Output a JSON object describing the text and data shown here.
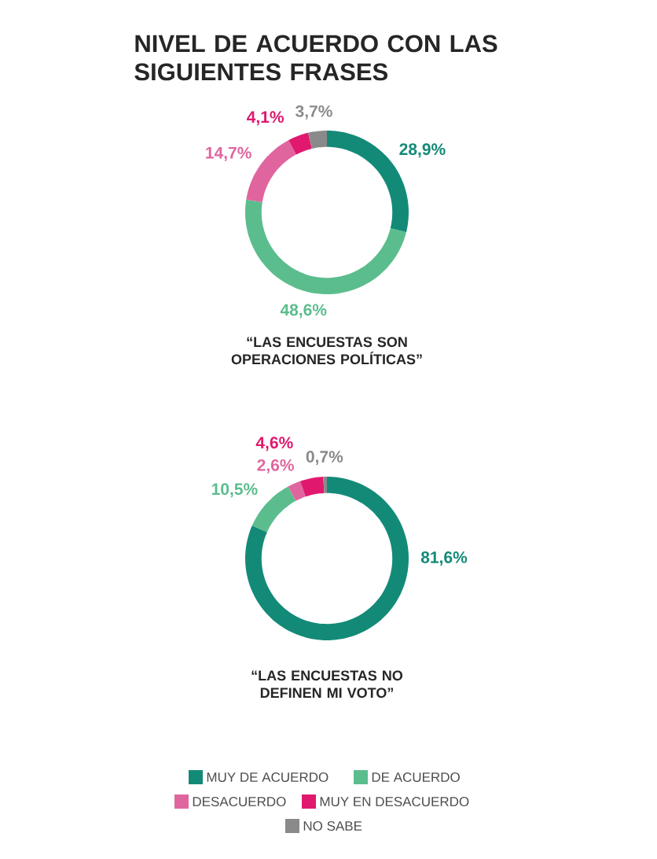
{
  "chart_data": [
    {
      "type": "donut",
      "title": "NIVEL DE ACUERDO CON LAS SIGUIENTES FRASES",
      "xlabel": "“LAS ENCUESTAS SON OPERACIONES POLÍTICAS”",
      "categories": [
        null,
        null,
        null,
        null,
        null
      ],
      "values": [
        28.9,
        48.6,
        14.7,
        4.1,
        3.7
      ],
      "value_labels": [
        "28,9%",
        "48,6%",
        "14,7%",
        "4,1%",
        "3,7%"
      ],
      "colors": [
        "#138a78",
        "#5bbd8d",
        "#e0659f",
        "#e0196f",
        "#8a8a8a"
      ]
    },
    {
      "type": "donut",
      "xlabel": "“LAS ENCUESTAS NO DEFINEN MI VOTO”",
      "legend": "bottom",
      "categories": [
        "MUY DE ACUERDO",
        "DE ACUERDO",
        "DESACUERDO",
        "MUY EN DESACUERDO",
        "NO SABE"
      ],
      "values": [
        81.6,
        10.5,
        2.6,
        4.6,
        0.7
      ],
      "value_labels": [
        "81,6%",
        "10,5%",
        "2,6%",
        "4,6%",
        "0,7%"
      ],
      "colors": [
        "#138a78",
        "#5bbd8d",
        "#e0659f",
        "#e0196f",
        "#8a8a8a"
      ]
    }
  ]
}
